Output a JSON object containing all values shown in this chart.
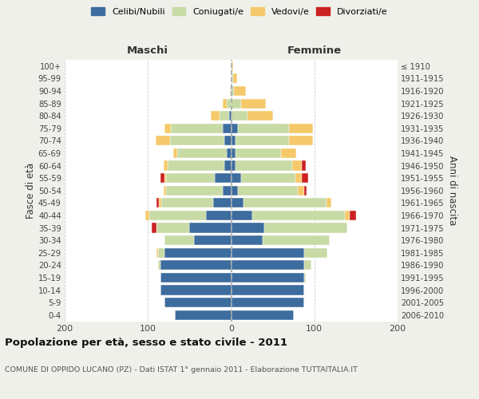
{
  "age_groups": [
    "0-4",
    "5-9",
    "10-14",
    "15-19",
    "20-24",
    "25-29",
    "30-34",
    "35-39",
    "40-44",
    "45-49",
    "50-54",
    "55-59",
    "60-64",
    "65-69",
    "70-74",
    "75-79",
    "80-84",
    "85-89",
    "90-94",
    "95-99",
    "100+"
  ],
  "birth_years": [
    "2006-2010",
    "2001-2005",
    "1996-2000",
    "1991-1995",
    "1986-1990",
    "1981-1985",
    "1976-1980",
    "1971-1975",
    "1966-1970",
    "1961-1965",
    "1956-1960",
    "1951-1955",
    "1946-1950",
    "1941-1945",
    "1936-1940",
    "1931-1935",
    "1926-1930",
    "1921-1925",
    "1916-1920",
    "1911-1915",
    "≤ 1910"
  ],
  "colors": {
    "celibi": "#3d6c9e",
    "coniugati": "#c8daa5",
    "vedovi": "#f5c96a",
    "divorziati": "#cc2222"
  },
  "maschi": {
    "celibi": [
      68,
      80,
      85,
      85,
      85,
      80,
      45,
      50,
      30,
      22,
      10,
      20,
      8,
      5,
      8,
      10,
      2,
      0,
      0,
      0,
      0
    ],
    "coniugati": [
      0,
      0,
      0,
      0,
      3,
      8,
      35,
      40,
      68,
      62,
      68,
      58,
      68,
      60,
      65,
      62,
      12,
      5,
      1,
      0,
      0
    ],
    "vedovi": [
      0,
      0,
      0,
      0,
      0,
      2,
      0,
      0,
      5,
      3,
      3,
      2,
      5,
      5,
      18,
      8,
      10,
      5,
      0,
      0,
      0
    ],
    "divorziati": [
      0,
      0,
      0,
      0,
      0,
      0,
      0,
      5,
      0,
      3,
      0,
      5,
      0,
      0,
      0,
      0,
      0,
      0,
      0,
      0,
      0
    ]
  },
  "femmine": {
    "celibi": [
      75,
      88,
      88,
      88,
      88,
      88,
      38,
      40,
      25,
      15,
      8,
      12,
      5,
      5,
      5,
      8,
      0,
      0,
      0,
      0,
      0
    ],
    "coniugati": [
      0,
      0,
      0,
      2,
      8,
      28,
      80,
      100,
      112,
      100,
      72,
      65,
      68,
      55,
      65,
      62,
      20,
      12,
      3,
      2,
      0
    ],
    "vedovi": [
      0,
      0,
      0,
      0,
      0,
      0,
      0,
      0,
      5,
      5,
      8,
      8,
      12,
      18,
      28,
      28,
      30,
      30,
      15,
      5,
      2
    ],
    "divorziati": [
      0,
      0,
      0,
      0,
      0,
      0,
      0,
      0,
      8,
      0,
      3,
      8,
      5,
      0,
      0,
      0,
      0,
      0,
      0,
      0,
      0
    ]
  },
  "xlim": 200,
  "title": "Popolazione per età, sesso e stato civile - 2011",
  "subtitle": "COMUNE DI OPPIDO LUCANO (PZ) - Dati ISTAT 1° gennaio 2011 - Elaborazione TUTTAITALIA.IT",
  "xlabel_left": "Maschi",
  "xlabel_right": "Femmine",
  "ylabel_left": "Fasce di età",
  "ylabel_right": "Anni di nascita",
  "legend_labels": [
    "Celibi/Nubili",
    "Coniugati/e",
    "Vedovi/e",
    "Divorziati/e"
  ],
  "bg_color": "#f0f0eb",
  "plot_bg": "#ffffff",
  "grid_color": "#cccccc"
}
